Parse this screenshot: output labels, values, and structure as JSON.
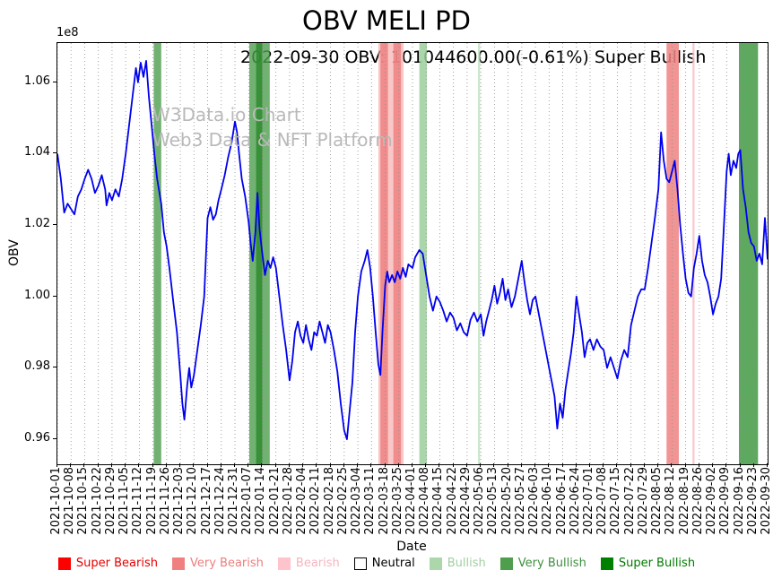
{
  "title": "OBV MELI PD",
  "subtitle": "2022-09-30 OBV: 101044600.00(-0.61%) Super Bullish",
  "watermark": {
    "line1": "W3Data.io Chart",
    "line2": "Web3 Data & NFT Platform"
  },
  "axes": {
    "ylabel": "OBV",
    "xlabel": "Date",
    "offset_label": "1e8"
  },
  "legend": {
    "items": [
      {
        "label": "Super Bearish",
        "color": "#ff0000",
        "text_color": "#e60000"
      },
      {
        "label": "Very Bearish",
        "color": "#f08080",
        "text_color": "#ee7d7d"
      },
      {
        "label": "Bearish",
        "color": "#ffc3cc",
        "text_color": "#f5b5bf"
      },
      {
        "label": "Neutral",
        "color": "#ffffff",
        "text_color": "#000000",
        "edge": "#000000"
      },
      {
        "label": "Bullish",
        "color": "#abd7ab",
        "text_color": "#a2cfa2"
      },
      {
        "label": "Very Bullish",
        "color": "#4e9e4e",
        "text_color": "#3f8f3f"
      },
      {
        "label": "Super Bullish",
        "color": "#008000",
        "text_color": "#007a00"
      }
    ]
  },
  "chart_data": {
    "type": "line",
    "title": "OBV MELI PD",
    "xlabel": "Date",
    "ylabel": "OBV",
    "y_scale": "1e8",
    "ylim": [
      0.953,
      1.071
    ],
    "yticks": [
      0.96,
      0.98,
      1.0,
      1.02,
      1.04,
      1.06
    ],
    "line_color": "#0000ee",
    "grid": "vertical-dotted",
    "legend_position": "bottom",
    "x_tick_labels": [
      "2021-10-01",
      "2021-10-08",
      "2021-10-15",
      "2021-10-22",
      "2021-10-29",
      "2021-11-05",
      "2021-11-12",
      "2021-11-19",
      "2021-11-26",
      "2021-12-03",
      "2021-12-10",
      "2021-12-17",
      "2021-12-24",
      "2021-12-31",
      "2022-01-07",
      "2022-01-14",
      "2022-01-21",
      "2022-01-28",
      "2022-02-04",
      "2022-02-11",
      "2022-02-18",
      "2022-02-25",
      "2022-03-04",
      "2022-03-11",
      "2022-03-18",
      "2022-03-25",
      "2022-04-01",
      "2022-04-08",
      "2022-04-15",
      "2022-04-22",
      "2022-04-29",
      "2022-05-06",
      "2022-05-13",
      "2022-05-20",
      "2022-05-27",
      "2022-06-03",
      "2022-06-10",
      "2022-06-17",
      "2022-06-24",
      "2022-07-01",
      "2022-07-08",
      "2022-07-15",
      "2022-07-22",
      "2022-07-29",
      "2022-08-05",
      "2022-08-12",
      "2022-08-19",
      "2022-08-26",
      "2022-09-02",
      "2022-09-09",
      "2022-09-16",
      "2022-09-23",
      "2022-09-30"
    ],
    "bands": [
      {
        "x0": 7.05,
        "x1": 7.6,
        "color": "#4e9e4e",
        "opacity": 0.8,
        "label": "Very Bullish"
      },
      {
        "x0": 14.05,
        "x1": 15.55,
        "color": "#4e9e4e",
        "opacity": 0.8,
        "label": "Very Bullish"
      },
      {
        "x0": 14.55,
        "x1": 15.0,
        "color": "#2e8b2e",
        "opacity": 0.85,
        "label": "Very Bullish"
      },
      {
        "x0": 23.5,
        "x1": 25.35,
        "color": "#f4a9a9",
        "opacity": 0.65,
        "label": "Bearish"
      },
      {
        "x0": 23.65,
        "x1": 24.2,
        "color": "#ee8181",
        "opacity": 0.85,
        "label": "Very Bearish"
      },
      {
        "x0": 24.6,
        "x1": 25.15,
        "color": "#ee8181",
        "opacity": 0.85,
        "label": "Very Bearish"
      },
      {
        "x0": 26.5,
        "x1": 27.05,
        "color": "#9ccf9c",
        "opacity": 0.85,
        "label": "Bullish"
      },
      {
        "x0": 30.8,
        "x1": 30.95,
        "color": "#bfe2bf",
        "opacity": 0.85,
        "label": "Bullish"
      },
      {
        "x0": 44.6,
        "x1": 45.5,
        "color": "#ee8181",
        "opacity": 0.85,
        "label": "Very Bearish"
      },
      {
        "x0": 46.5,
        "x1": 46.65,
        "color": "#f7c0c8",
        "opacity": 0.85,
        "label": "Bearish"
      },
      {
        "x0": 49.9,
        "x1": 51.3,
        "color": "#4e9e4e",
        "opacity": 0.9,
        "label": "Very Bullish"
      }
    ],
    "series": [
      {
        "name": "OBV",
        "last_value": 101044600.0,
        "last_change_pct": -0.61,
        "last_signal": "Super Bullish",
        "points": [
          [
            0,
            1.04
          ],
          [
            0.25,
            1.033
          ],
          [
            0.5,
            1.0235
          ],
          [
            0.75,
            1.026
          ],
          [
            1,
            1.0245
          ],
          [
            1.25,
            1.023
          ],
          [
            1.5,
            1.028
          ],
          [
            1.75,
            1.03
          ],
          [
            2,
            1.033
          ],
          [
            2.25,
            1.0355
          ],
          [
            2.5,
            1.033
          ],
          [
            2.75,
            1.029
          ],
          [
            3,
            1.031
          ],
          [
            3.25,
            1.034
          ],
          [
            3.5,
            1.03
          ],
          [
            3.6,
            1.0255
          ],
          [
            3.8,
            1.029
          ],
          [
            4,
            1.027
          ],
          [
            4.25,
            1.03
          ],
          [
            4.5,
            1.028
          ],
          [
            4.75,
            1.033
          ],
          [
            5,
            1.04
          ],
          [
            5.25,
            1.048
          ],
          [
            5.5,
            1.056
          ],
          [
            5.75,
            1.064
          ],
          [
            5.9,
            1.06
          ],
          [
            6.1,
            1.0655
          ],
          [
            6.3,
            1.0615
          ],
          [
            6.5,
            1.066
          ],
          [
            6.7,
            1.056
          ],
          [
            6.9,
            1.048
          ],
          [
            7.1,
            1.04
          ],
          [
            7.3,
            1.033
          ],
          [
            7.6,
            1.026
          ],
          [
            7.8,
            1.018
          ],
          [
            8,
            1.014
          ],
          [
            8.2,
            1.008
          ],
          [
            8.5,
            0.998
          ],
          [
            8.75,
            0.99
          ],
          [
            9,
            0.978
          ],
          [
            9.15,
            0.97
          ],
          [
            9.3,
            0.9655
          ],
          [
            9.5,
            0.975
          ],
          [
            9.65,
            0.98
          ],
          [
            9.8,
            0.9745
          ],
          [
            10,
            0.978
          ],
          [
            10.25,
            0.985
          ],
          [
            10.5,
            0.992
          ],
          [
            10.75,
            1.0
          ],
          [
            11,
            1.022
          ],
          [
            11.2,
            1.025
          ],
          [
            11.4,
            1.0215
          ],
          [
            11.6,
            1.023
          ],
          [
            11.8,
            1.027
          ],
          [
            12,
            1.03
          ],
          [
            12.25,
            1.034
          ],
          [
            12.5,
            1.039
          ],
          [
            12.75,
            1.043
          ],
          [
            13,
            1.049
          ],
          [
            13.15,
            1.046
          ],
          [
            13.3,
            1.04
          ],
          [
            13.5,
            1.033
          ],
          [
            13.75,
            1.028
          ],
          [
            14,
            1.021
          ],
          [
            14.15,
            1.015
          ],
          [
            14.3,
            1.01
          ],
          [
            14.5,
            1.018
          ],
          [
            14.65,
            1.029
          ],
          [
            14.8,
            1.019
          ],
          [
            15,
            1.012
          ],
          [
            15.2,
            1.006
          ],
          [
            15.4,
            1.01
          ],
          [
            15.6,
            1.008
          ],
          [
            15.8,
            1.011
          ],
          [
            16,
            1.008
          ],
          [
            16.25,
            1.0
          ],
          [
            16.5,
            0.992
          ],
          [
            16.75,
            0.985
          ],
          [
            17,
            0.9765
          ],
          [
            17.2,
            0.982
          ],
          [
            17.4,
            0.99
          ],
          [
            17.6,
            0.993
          ],
          [
            17.8,
            0.989
          ],
          [
            18,
            0.987
          ],
          [
            18.2,
            0.992
          ],
          [
            18.4,
            0.988
          ],
          [
            18.6,
            0.985
          ],
          [
            18.8,
            0.99
          ],
          [
            19,
            0.989
          ],
          [
            19.2,
            0.993
          ],
          [
            19.4,
            0.99
          ],
          [
            19.6,
            0.987
          ],
          [
            19.8,
            0.992
          ],
          [
            20,
            0.99
          ],
          [
            20.25,
            0.985
          ],
          [
            20.5,
            0.979
          ],
          [
            20.75,
            0.97
          ],
          [
            21,
            0.9625
          ],
          [
            21.2,
            0.96
          ],
          [
            21.4,
            0.968
          ],
          [
            21.6,
            0.976
          ],
          [
            21.8,
            0.99
          ],
          [
            22,
            1.0
          ],
          [
            22.25,
            1.007
          ],
          [
            22.5,
            1.01
          ],
          [
            22.7,
            1.013
          ],
          [
            22.9,
            1.008
          ],
          [
            23.1,
            1.0
          ],
          [
            23.3,
            0.99
          ],
          [
            23.5,
            0.981
          ],
          [
            23.65,
            0.978
          ],
          [
            23.8,
            0.99
          ],
          [
            24,
            1.003
          ],
          [
            24.15,
            1.007
          ],
          [
            24.3,
            1.004
          ],
          [
            24.5,
            1.006
          ],
          [
            24.7,
            1.004
          ],
          [
            24.9,
            1.007
          ],
          [
            25.1,
            1.005
          ],
          [
            25.3,
            1.008
          ],
          [
            25.5,
            1.0055
          ],
          [
            25.7,
            1.009
          ],
          [
            26,
            1.008
          ],
          [
            26.2,
            1.011
          ],
          [
            26.5,
            1.013
          ],
          [
            26.75,
            1.012
          ],
          [
            27,
            1.006
          ],
          [
            27.25,
            1.0
          ],
          [
            27.5,
            0.996
          ],
          [
            27.75,
            1.0
          ],
          [
            28,
            0.9985
          ],
          [
            28.25,
            0.996
          ],
          [
            28.5,
            0.993
          ],
          [
            28.75,
            0.9955
          ],
          [
            29,
            0.994
          ],
          [
            29.25,
            0.9905
          ],
          [
            29.5,
            0.9925
          ],
          [
            29.75,
            0.99
          ],
          [
            30,
            0.989
          ],
          [
            30.25,
            0.9935
          ],
          [
            30.5,
            0.9955
          ],
          [
            30.75,
            0.993
          ],
          [
            31,
            0.995
          ],
          [
            31.2,
            0.989
          ],
          [
            31.4,
            0.993
          ],
          [
            31.6,
            0.996
          ],
          [
            31.8,
            0.999
          ],
          [
            32,
            1.003
          ],
          [
            32.2,
            0.998
          ],
          [
            32.4,
            1.001
          ],
          [
            32.6,
            1.005
          ],
          [
            32.8,
            0.999
          ],
          [
            33,
            1.002
          ],
          [
            33.25,
            0.997
          ],
          [
            33.5,
            1.0
          ],
          [
            33.75,
            1.005
          ],
          [
            34,
            1.01
          ],
          [
            34.2,
            1.004
          ],
          [
            34.4,
            0.999
          ],
          [
            34.6,
            0.995
          ],
          [
            34.8,
            0.999
          ],
          [
            35,
            1.0
          ],
          [
            35.25,
            0.995
          ],
          [
            35.5,
            0.99
          ],
          [
            35.75,
            0.985
          ],
          [
            36,
            0.98
          ],
          [
            36.2,
            0.976
          ],
          [
            36.4,
            0.972
          ],
          [
            36.6,
            0.963
          ],
          [
            36.8,
            0.97
          ],
          [
            37,
            0.966
          ],
          [
            37.2,
            0.974
          ],
          [
            37.4,
            0.979
          ],
          [
            37.6,
            0.984
          ],
          [
            37.8,
            0.99
          ],
          [
            38,
            1.0
          ],
          [
            38.2,
            0.995
          ],
          [
            38.4,
            0.99
          ],
          [
            38.6,
            0.983
          ],
          [
            38.8,
            0.987
          ],
          [
            39,
            0.988
          ],
          [
            39.25,
            0.985
          ],
          [
            39.5,
            0.988
          ],
          [
            39.75,
            0.986
          ],
          [
            40,
            0.985
          ],
          [
            40.25,
            0.98
          ],
          [
            40.5,
            0.983
          ],
          [
            40.75,
            0.98
          ],
          [
            41,
            0.977
          ],
          [
            41.25,
            0.982
          ],
          [
            41.5,
            0.985
          ],
          [
            41.75,
            0.983
          ],
          [
            42,
            0.992
          ],
          [
            42.25,
            0.996
          ],
          [
            42.5,
            1.0
          ],
          [
            42.75,
            1.002
          ],
          [
            43,
            1.002
          ],
          [
            43.25,
            1.008
          ],
          [
            43.5,
            1.015
          ],
          [
            43.75,
            1.022
          ],
          [
            44,
            1.03
          ],
          [
            44.2,
            1.046
          ],
          [
            44.4,
            1.038
          ],
          [
            44.6,
            1.033
          ],
          [
            44.8,
            1.032
          ],
          [
            45,
            1.035
          ],
          [
            45.2,
            1.038
          ],
          [
            45.4,
            1.03
          ],
          [
            45.6,
            1.02
          ],
          [
            45.8,
            1.012
          ],
          [
            46,
            1.005
          ],
          [
            46.2,
            1.001
          ],
          [
            46.4,
            1.0
          ],
          [
            46.6,
            1.008
          ],
          [
            46.8,
            1.012
          ],
          [
            47,
            1.017
          ],
          [
            47.2,
            1.01
          ],
          [
            47.4,
            1.006
          ],
          [
            47.6,
            1.004
          ],
          [
            47.8,
            1.0
          ],
          [
            48,
            0.995
          ],
          [
            48.2,
            0.998
          ],
          [
            48.4,
            1.0
          ],
          [
            48.6,
            1.005
          ],
          [
            48.8,
            1.02
          ],
          [
            49,
            1.035
          ],
          [
            49.15,
            1.04
          ],
          [
            49.3,
            1.034
          ],
          [
            49.5,
            1.038
          ],
          [
            49.7,
            1.036
          ],
          [
            49.85,
            1.04
          ],
          [
            50,
            1.041
          ],
          [
            50.2,
            1.03
          ],
          [
            50.4,
            1.025
          ],
          [
            50.6,
            1.018
          ],
          [
            50.8,
            1.015
          ],
          [
            51,
            1.014
          ],
          [
            51.2,
            1.01
          ],
          [
            51.4,
            1.012
          ],
          [
            51.6,
            1.009
          ],
          [
            51.8,
            1.022
          ],
          [
            52,
            1.0104
          ]
        ]
      }
    ]
  }
}
